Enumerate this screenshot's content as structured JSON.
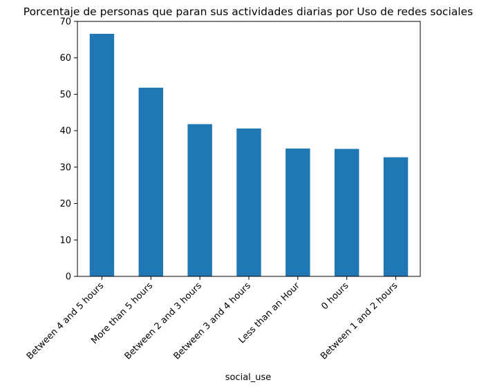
{
  "chart_data": {
    "type": "bar",
    "title": "Porcentaje de personas que paran sus actividades diarias por Uso de redes sociales",
    "xlabel": "social_use",
    "ylabel": "",
    "categories": [
      "Between 4 and 5 hours",
      "More than 5 hours",
      "Between 2 and 3 hours",
      "Between 3 and 4 hours",
      "Less than an Hour",
      "0 hours",
      "Between 1 and 2 hours"
    ],
    "values": [
      66.6,
      51.8,
      41.8,
      40.6,
      35.1,
      35.0,
      32.7
    ],
    "ylim": [
      0,
      70
    ],
    "yticks": [
      0,
      10,
      20,
      30,
      40,
      50,
      60,
      70
    ],
    "bar_color": "#1f77b4",
    "grid": false,
    "legend": "none"
  }
}
